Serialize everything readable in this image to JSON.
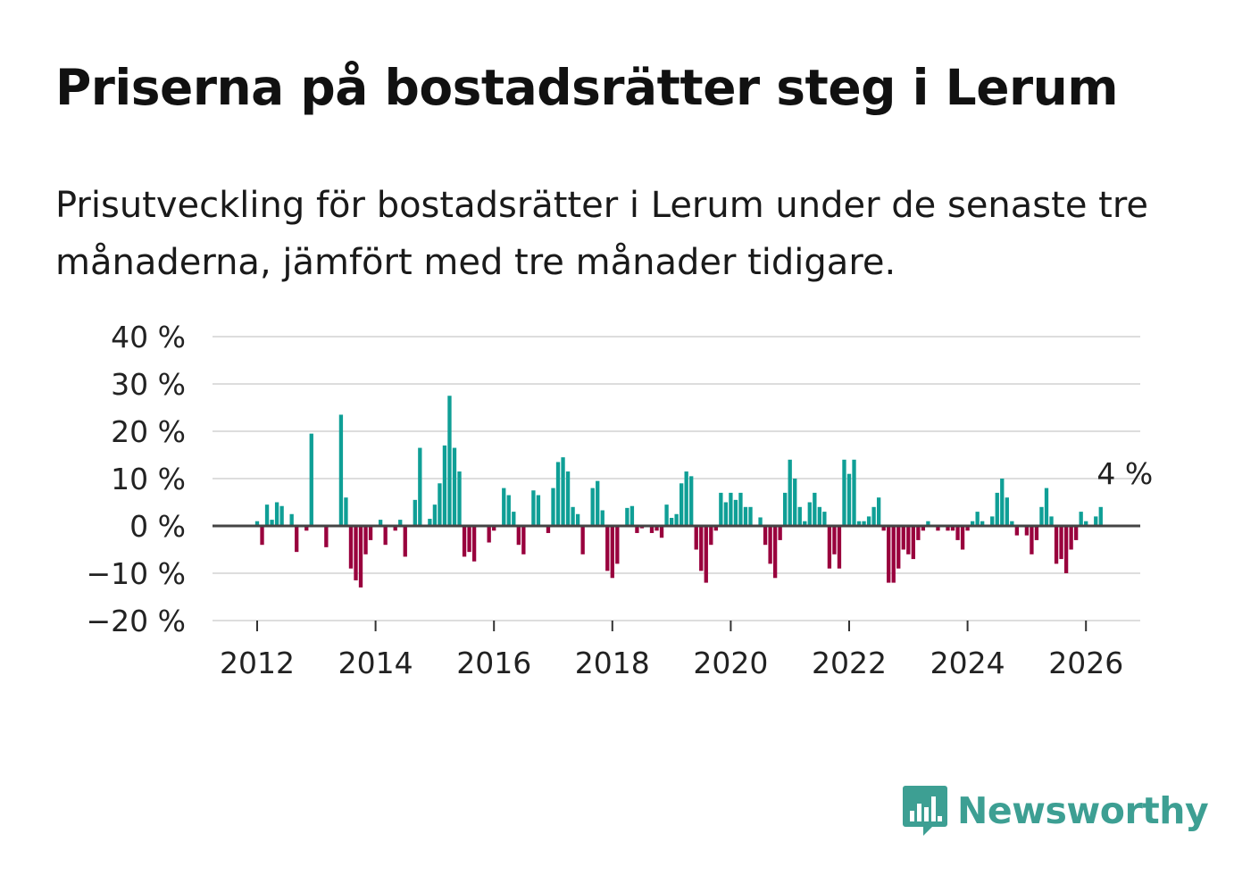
{
  "title": "Priserna på bostadsrätter steg i Lerum",
  "subtitle": "Prisutveckling för bostadsrätter i Lerum under de senaste tre månaderna, jämfört med tre månader tidigare.",
  "logo_text": "Newsworthy",
  "logo_icon": "bar-chart-speech-bubble-icon",
  "colors": {
    "positive": "#0f9f96",
    "negative": "#99003d",
    "zero_line": "#444444",
    "grid": "#dddddd",
    "logo": "#3d9f93"
  },
  "chart_data": {
    "type": "bar",
    "title": "Priserna på bostadsrätter steg i Lerum",
    "xlabel": "",
    "ylabel": "",
    "ylim": [
      -20,
      40
    ],
    "yticks": [
      40,
      30,
      20,
      10,
      0,
      -10,
      -20
    ],
    "ytick_labels": [
      "40 %",
      "30 %",
      "20 %",
      "10 %",
      "0 %",
      "−10 %",
      "−20 %"
    ],
    "xticks": [
      2012,
      2014,
      2016,
      2018,
      2020,
      2022,
      2024,
      2026
    ],
    "xtick_labels": [
      "2012",
      "2014",
      "2016",
      "2018",
      "2020",
      "2022",
      "2024",
      "2026"
    ],
    "x_start": "2012-01",
    "interval": "monthly",
    "grid": true,
    "annotation": {
      "text": "4 %",
      "target": "last"
    },
    "values": [
      1,
      -4,
      4.5,
      1.3,
      5,
      4.2,
      0,
      2.5,
      -5.5,
      0,
      -1,
      19.5,
      0,
      0,
      -4.5,
      0,
      0,
      23.5,
      6,
      -9,
      -11.5,
      -13,
      -6,
      -3,
      0,
      1.3,
      -4,
      0,
      -1,
      1.3,
      -6.5,
      0,
      5.5,
      16.5,
      0,
      1.5,
      4.5,
      9,
      17,
      27.5,
      16.5,
      11.5,
      -6.5,
      -5.5,
      -7.5,
      0,
      0,
      -3.5,
      -1,
      0,
      8,
      6.5,
      3,
      -4,
      -6,
      0,
      7.5,
      6.5,
      0,
      -1.5,
      8,
      13.5,
      14.5,
      11.5,
      4,
      2.5,
      -6,
      0,
      8,
      9.5,
      3.3,
      -9.5,
      -11,
      -8,
      0,
      3.8,
      4.2,
      -1.5,
      -0.5,
      0,
      -1.5,
      -1,
      -2.5,
      4.5,
      1.7,
      2.5,
      9,
      11.5,
      10.5,
      -5,
      -9.5,
      -12,
      -4,
      -1,
      7,
      5,
      7,
      5.5,
      7,
      4,
      4,
      0,
      1.8,
      -4,
      -8,
      -11,
      -3,
      7,
      14,
      10,
      4,
      1,
      5,
      7,
      4,
      3,
      -9,
      -6,
      -9,
      14,
      11,
      14,
      1,
      1,
      2,
      4,
      6,
      -1,
      -12,
      -12,
      -9,
      -5,
      -6,
      -7,
      -3,
      -1,
      1,
      0,
      -1,
      0,
      -1,
      -1,
      -3,
      -5,
      -1,
      1,
      3,
      1,
      0,
      2,
      7,
      10,
      6,
      1,
      -2,
      0,
      -2,
      -6,
      -3,
      4,
      8,
      2,
      -8,
      -7,
      -10,
      -5,
      -3,
      3,
      1,
      0,
      2,
      4
    ]
  }
}
